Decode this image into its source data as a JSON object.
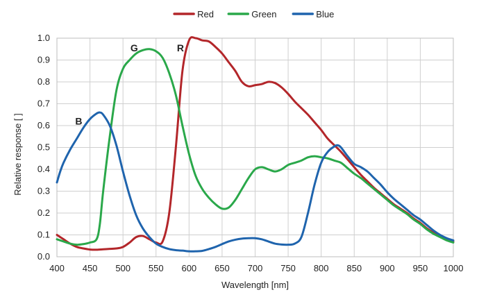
{
  "chart_data": {
    "type": "line",
    "title": "",
    "xlabel": "Wavelength [nm]",
    "ylabel": "Relative response [ ]",
    "xlim": [
      400,
      1000
    ],
    "ylim": [
      0,
      1.0
    ],
    "x_ticks": [
      400,
      450,
      500,
      550,
      600,
      650,
      700,
      750,
      800,
      850,
      900,
      950,
      1000
    ],
    "y_ticks": [
      "0.0",
      "0.1",
      "0.2",
      "0.3",
      "0.4",
      "0.5",
      "0.6",
      "0.7",
      "0.8",
      "0.9",
      "1.0"
    ],
    "grid": true,
    "legend_position": "top-center",
    "series": [
      {
        "name": "Red",
        "color": "#b3262a",
        "points": [
          [
            400,
            0.1
          ],
          [
            410,
            0.08
          ],
          [
            420,
            0.06
          ],
          [
            430,
            0.045
          ],
          [
            440,
            0.038
          ],
          [
            450,
            0.033
          ],
          [
            460,
            0.032
          ],
          [
            470,
            0.034
          ],
          [
            480,
            0.036
          ],
          [
            490,
            0.038
          ],
          [
            500,
            0.045
          ],
          [
            510,
            0.065
          ],
          [
            520,
            0.09
          ],
          [
            530,
            0.095
          ],
          [
            540,
            0.08
          ],
          [
            550,
            0.065
          ],
          [
            560,
            0.07
          ],
          [
            570,
            0.2
          ],
          [
            580,
            0.5
          ],
          [
            590,
            0.85
          ],
          [
            600,
            0.99
          ],
          [
            610,
            1.0
          ],
          [
            620,
            0.99
          ],
          [
            630,
            0.985
          ],
          [
            640,
            0.96
          ],
          [
            650,
            0.93
          ],
          [
            660,
            0.89
          ],
          [
            670,
            0.85
          ],
          [
            680,
            0.8
          ],
          [
            690,
            0.78
          ],
          [
            700,
            0.785
          ],
          [
            710,
            0.79
          ],
          [
            720,
            0.8
          ],
          [
            730,
            0.795
          ],
          [
            740,
            0.775
          ],
          [
            750,
            0.745
          ],
          [
            760,
            0.71
          ],
          [
            770,
            0.68
          ],
          [
            780,
            0.65
          ],
          [
            790,
            0.615
          ],
          [
            800,
            0.58
          ],
          [
            810,
            0.54
          ],
          [
            820,
            0.51
          ],
          [
            830,
            0.48
          ],
          [
            840,
            0.445
          ],
          [
            850,
            0.41
          ],
          [
            860,
            0.375
          ],
          [
            870,
            0.345
          ],
          [
            880,
            0.315
          ],
          [
            890,
            0.29
          ],
          [
            900,
            0.265
          ],
          [
            910,
            0.24
          ],
          [
            920,
            0.22
          ],
          [
            930,
            0.2
          ],
          [
            940,
            0.175
          ],
          [
            950,
            0.155
          ],
          [
            960,
            0.13
          ],
          [
            970,
            0.11
          ],
          [
            980,
            0.095
          ],
          [
            990,
            0.08
          ],
          [
            1000,
            0.07
          ]
        ]
      },
      {
        "name": "Green",
        "color": "#2aa84a",
        "points": [
          [
            400,
            0.08
          ],
          [
            410,
            0.07
          ],
          [
            420,
            0.06
          ],
          [
            430,
            0.055
          ],
          [
            440,
            0.058
          ],
          [
            450,
            0.065
          ],
          [
            460,
            0.08
          ],
          [
            465,
            0.15
          ],
          [
            470,
            0.3
          ],
          [
            480,
            0.55
          ],
          [
            490,
            0.76
          ],
          [
            500,
            0.86
          ],
          [
            510,
            0.9
          ],
          [
            520,
            0.93
          ],
          [
            530,
            0.945
          ],
          [
            540,
            0.95
          ],
          [
            550,
            0.94
          ],
          [
            560,
            0.91
          ],
          [
            570,
            0.84
          ],
          [
            580,
            0.74
          ],
          [
            590,
            0.6
          ],
          [
            600,
            0.47
          ],
          [
            610,
            0.37
          ],
          [
            620,
            0.31
          ],
          [
            630,
            0.27
          ],
          [
            640,
            0.24
          ],
          [
            650,
            0.22
          ],
          [
            660,
            0.225
          ],
          [
            670,
            0.26
          ],
          [
            680,
            0.31
          ],
          [
            690,
            0.36
          ],
          [
            700,
            0.4
          ],
          [
            710,
            0.41
          ],
          [
            720,
            0.4
          ],
          [
            730,
            0.39
          ],
          [
            740,
            0.4
          ],
          [
            750,
            0.42
          ],
          [
            760,
            0.43
          ],
          [
            770,
            0.44
          ],
          [
            780,
            0.455
          ],
          [
            790,
            0.46
          ],
          [
            800,
            0.455
          ],
          [
            810,
            0.45
          ],
          [
            820,
            0.44
          ],
          [
            830,
            0.43
          ],
          [
            840,
            0.405
          ],
          [
            850,
            0.38
          ],
          [
            860,
            0.36
          ],
          [
            870,
            0.335
          ],
          [
            880,
            0.31
          ],
          [
            890,
            0.285
          ],
          [
            900,
            0.26
          ],
          [
            910,
            0.235
          ],
          [
            920,
            0.215
          ],
          [
            930,
            0.195
          ],
          [
            940,
            0.17
          ],
          [
            950,
            0.15
          ],
          [
            960,
            0.125
          ],
          [
            970,
            0.105
          ],
          [
            980,
            0.09
          ],
          [
            990,
            0.075
          ],
          [
            1000,
            0.065
          ]
        ]
      },
      {
        "name": "Blue",
        "color": "#1f64ad",
        "points": [
          [
            400,
            0.34
          ],
          [
            405,
            0.39
          ],
          [
            410,
            0.43
          ],
          [
            420,
            0.49
          ],
          [
            430,
            0.54
          ],
          [
            440,
            0.59
          ],
          [
            450,
            0.63
          ],
          [
            460,
            0.655
          ],
          [
            465,
            0.66
          ],
          [
            470,
            0.65
          ],
          [
            480,
            0.6
          ],
          [
            490,
            0.51
          ],
          [
            500,
            0.39
          ],
          [
            510,
            0.28
          ],
          [
            520,
            0.19
          ],
          [
            530,
            0.13
          ],
          [
            540,
            0.09
          ],
          [
            550,
            0.06
          ],
          [
            560,
            0.045
          ],
          [
            570,
            0.035
          ],
          [
            580,
            0.03
          ],
          [
            590,
            0.028
          ],
          [
            600,
            0.025
          ],
          [
            610,
            0.025
          ],
          [
            620,
            0.027
          ],
          [
            630,
            0.035
          ],
          [
            640,
            0.045
          ],
          [
            650,
            0.058
          ],
          [
            660,
            0.07
          ],
          [
            670,
            0.078
          ],
          [
            680,
            0.083
          ],
          [
            690,
            0.085
          ],
          [
            700,
            0.085
          ],
          [
            710,
            0.08
          ],
          [
            720,
            0.07
          ],
          [
            730,
            0.06
          ],
          [
            740,
            0.056
          ],
          [
            750,
            0.055
          ],
          [
            760,
            0.06
          ],
          [
            770,
            0.09
          ],
          [
            780,
            0.2
          ],
          [
            790,
            0.33
          ],
          [
            800,
            0.43
          ],
          [
            810,
            0.48
          ],
          [
            820,
            0.505
          ],
          [
            825,
            0.51
          ],
          [
            830,
            0.5
          ],
          [
            840,
            0.46
          ],
          [
            850,
            0.425
          ],
          [
            860,
            0.41
          ],
          [
            870,
            0.39
          ],
          [
            880,
            0.36
          ],
          [
            890,
            0.33
          ],
          [
            900,
            0.295
          ],
          [
            910,
            0.265
          ],
          [
            920,
            0.24
          ],
          [
            930,
            0.215
          ],
          [
            940,
            0.19
          ],
          [
            950,
            0.17
          ],
          [
            960,
            0.145
          ],
          [
            970,
            0.12
          ],
          [
            980,
            0.1
          ],
          [
            990,
            0.085
          ],
          [
            1000,
            0.075
          ]
        ]
      }
    ],
    "annotations": [
      {
        "text": "B",
        "x": 433,
        "y": 0.62
      },
      {
        "text": "G",
        "x": 517,
        "y": 0.955
      },
      {
        "text": "R",
        "x": 587,
        "y": 0.955
      }
    ]
  }
}
